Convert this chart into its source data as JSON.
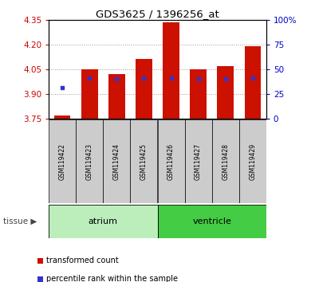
{
  "title": "GDS3625 / 1396256_at",
  "samples": [
    "GSM119422",
    "GSM119423",
    "GSM119424",
    "GSM119425",
    "GSM119426",
    "GSM119427",
    "GSM119428",
    "GSM119429"
  ],
  "red_values": [
    3.77,
    4.05,
    4.02,
    4.11,
    4.335,
    4.05,
    4.07,
    4.19
  ],
  "blue_values": [
    3.935,
    3.995,
    3.99,
    3.995,
    3.995,
    3.99,
    3.99,
    3.995
  ],
  "ymin": 3.75,
  "ymax": 4.35,
  "y_left_ticks": [
    3.75,
    3.9,
    4.05,
    4.2,
    4.35
  ],
  "y_right_ticks": [
    0,
    25,
    50,
    75,
    100
  ],
  "bar_bottom": 3.75,
  "bar_color": "#cc1100",
  "blue_color": "#3333cc",
  "tissue_groups": [
    {
      "label": "atrium",
      "count": 4,
      "color": "#bbeebb"
    },
    {
      "label": "ventricle",
      "count": 4,
      "color": "#44cc44"
    }
  ],
  "legend_items": [
    {
      "color": "#cc1100",
      "label": "transformed count"
    },
    {
      "color": "#3333cc",
      "label": "percentile rank within the sample"
    }
  ],
  "xlabel_color": "#cc0000",
  "ylabel_color_right": "#0000cc",
  "grid_color": "#999999",
  "bg_color": "#ffffff",
  "sample_box_color": "#cccccc",
  "tissue_label_color": "#333333"
}
